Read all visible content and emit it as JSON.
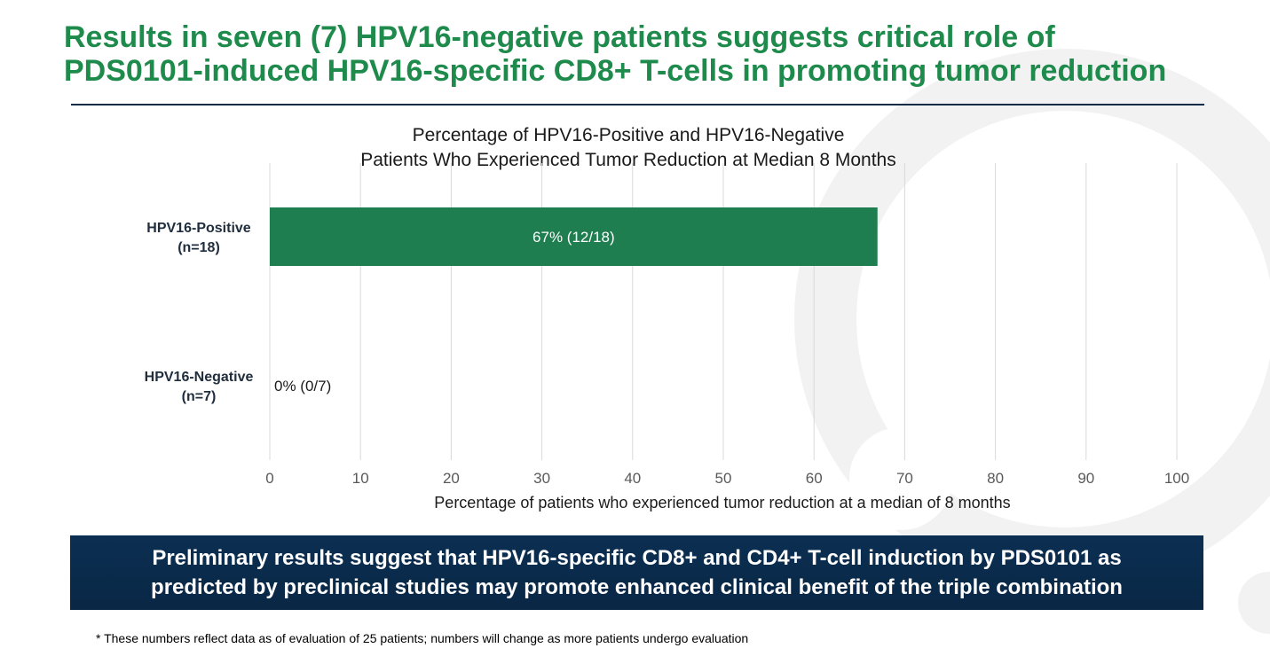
{
  "slide": {
    "title_line_1": "Results in seven (7) HPV16-negative patients suggests critical role of",
    "title_line_2": "PDS0101-induced HPV16-specific CD8+ T-cells in promoting tumor reduction",
    "conclusion_line_1": "Preliminary results suggest that HPV16-specific CD8+ and CD4+ T-cell induction by PDS0101 as",
    "conclusion_line_2": "predicted by preclinical studies may promote enhanced clinical benefit of the triple combination",
    "footnote": "* These numbers reflect data as of evaluation of 25 patients; numbers will change as more patients undergo evaluation"
  },
  "colors": {
    "title": "#1e8a4c",
    "bar": "#1e7e4f",
    "rule": "#0d2c47",
    "conclusion_bg": "#0b2f52",
    "gridline": "#d9d9d9",
    "watermark": "#f2f2f2"
  },
  "chart_data": {
    "type": "bar",
    "orientation": "horizontal",
    "title_lines": [
      "Percentage of HPV16-Positive and HPV16-Negative",
      "Patients Who Experienced Tumor Reduction at Median 8 Months"
    ],
    "categories": [
      [
        "HPV16-Positive",
        "(n=18)"
      ],
      [
        "HPV16-Negative",
        "(n=7)"
      ]
    ],
    "values": [
      67,
      0
    ],
    "data_labels": [
      "67% (12/18)",
      "0% (0/7)"
    ],
    "xlabel": "Percentage of patients who experienced tumor reduction at a median of 8 months",
    "ylabel": "",
    "xlim": [
      0,
      100
    ],
    "xticks": [
      0,
      10,
      20,
      30,
      40,
      50,
      60,
      70,
      80,
      90,
      100
    ],
    "grid": true
  }
}
